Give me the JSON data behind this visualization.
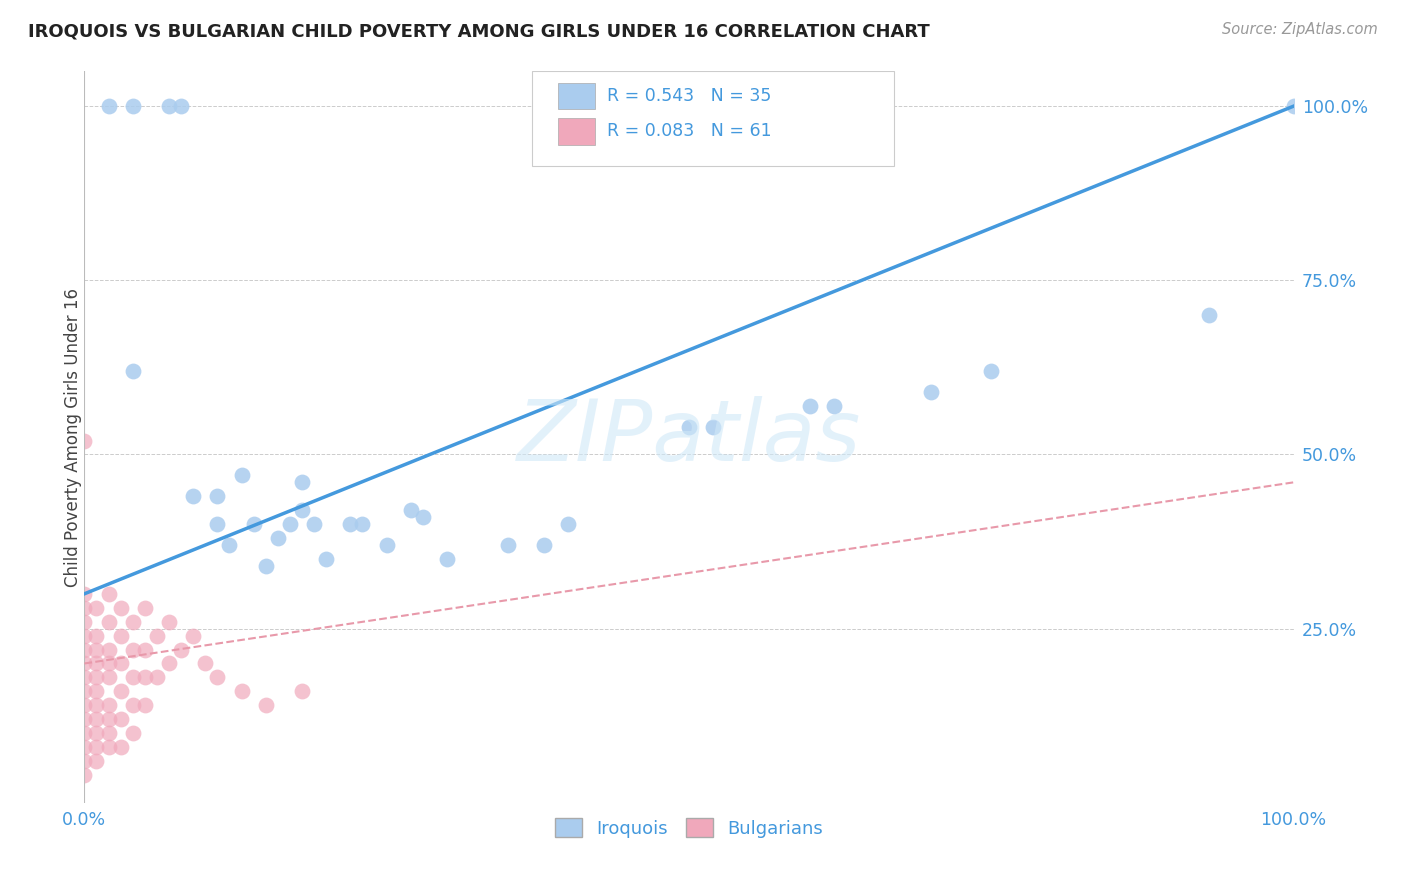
{
  "title": "IROQUOIS VS BULGARIAN CHILD POVERTY AMONG GIRLS UNDER 16 CORRELATION CHART",
  "source": "Source: ZipAtlas.com",
  "ylabel": "Child Poverty Among Girls Under 16",
  "iroquois_R": 0.543,
  "iroquois_N": 35,
  "bulgarians_R": 0.083,
  "bulgarians_N": 61,
  "iroquois_color": "#aaccee",
  "bulgarians_color": "#f0a8bb",
  "iroquois_line_color": "#4499dd",
  "bulgarians_line_color": "#e899aa",
  "legend_label_iroquois": "Iroquois",
  "legend_label_bulgarians": "Bulgarians",
  "iroquois_points": [
    [
      0.02,
      1.0
    ],
    [
      0.04,
      1.0
    ],
    [
      0.07,
      1.0
    ],
    [
      0.08,
      1.0
    ],
    [
      0.04,
      0.62
    ],
    [
      0.09,
      0.44
    ],
    [
      0.11,
      0.44
    ],
    [
      0.11,
      0.4
    ],
    [
      0.12,
      0.37
    ],
    [
      0.13,
      0.47
    ],
    [
      0.14,
      0.4
    ],
    [
      0.15,
      0.34
    ],
    [
      0.16,
      0.38
    ],
    [
      0.17,
      0.4
    ],
    [
      0.18,
      0.46
    ],
    [
      0.18,
      0.42
    ],
    [
      0.19,
      0.4
    ],
    [
      0.2,
      0.35
    ],
    [
      0.22,
      0.4
    ],
    [
      0.23,
      0.4
    ],
    [
      0.25,
      0.37
    ],
    [
      0.27,
      0.42
    ],
    [
      0.28,
      0.41
    ],
    [
      0.3,
      0.35
    ],
    [
      0.35,
      0.37
    ],
    [
      0.38,
      0.37
    ],
    [
      0.4,
      0.4
    ],
    [
      0.5,
      0.54
    ],
    [
      0.52,
      0.54
    ],
    [
      0.6,
      0.57
    ],
    [
      0.62,
      0.57
    ],
    [
      0.7,
      0.59
    ],
    [
      0.75,
      0.62
    ],
    [
      0.93,
      0.7
    ],
    [
      1.0,
      1.0
    ]
  ],
  "bulgarians_points": [
    [
      0.0,
      0.52
    ],
    [
      0.0,
      0.3
    ],
    [
      0.0,
      0.28
    ],
    [
      0.0,
      0.26
    ],
    [
      0.0,
      0.24
    ],
    [
      0.0,
      0.22
    ],
    [
      0.0,
      0.2
    ],
    [
      0.0,
      0.18
    ],
    [
      0.0,
      0.16
    ],
    [
      0.0,
      0.14
    ],
    [
      0.0,
      0.12
    ],
    [
      0.0,
      0.1
    ],
    [
      0.0,
      0.08
    ],
    [
      0.0,
      0.06
    ],
    [
      0.0,
      0.04
    ],
    [
      0.01,
      0.28
    ],
    [
      0.01,
      0.24
    ],
    [
      0.01,
      0.22
    ],
    [
      0.01,
      0.2
    ],
    [
      0.01,
      0.18
    ],
    [
      0.01,
      0.16
    ],
    [
      0.01,
      0.14
    ],
    [
      0.01,
      0.12
    ],
    [
      0.01,
      0.1
    ],
    [
      0.01,
      0.08
    ],
    [
      0.01,
      0.06
    ],
    [
      0.02,
      0.3
    ],
    [
      0.02,
      0.26
    ],
    [
      0.02,
      0.22
    ],
    [
      0.02,
      0.2
    ],
    [
      0.02,
      0.18
    ],
    [
      0.02,
      0.14
    ],
    [
      0.02,
      0.12
    ],
    [
      0.02,
      0.1
    ],
    [
      0.02,
      0.08
    ],
    [
      0.03,
      0.28
    ],
    [
      0.03,
      0.24
    ],
    [
      0.03,
      0.2
    ],
    [
      0.03,
      0.16
    ],
    [
      0.03,
      0.12
    ],
    [
      0.03,
      0.08
    ],
    [
      0.04,
      0.26
    ],
    [
      0.04,
      0.22
    ],
    [
      0.04,
      0.18
    ],
    [
      0.04,
      0.14
    ],
    [
      0.04,
      0.1
    ],
    [
      0.05,
      0.28
    ],
    [
      0.05,
      0.22
    ],
    [
      0.05,
      0.18
    ],
    [
      0.05,
      0.14
    ],
    [
      0.06,
      0.24
    ],
    [
      0.06,
      0.18
    ],
    [
      0.07,
      0.26
    ],
    [
      0.07,
      0.2
    ],
    [
      0.08,
      0.22
    ],
    [
      0.09,
      0.24
    ],
    [
      0.1,
      0.2
    ],
    [
      0.11,
      0.18
    ],
    [
      0.13,
      0.16
    ],
    [
      0.15,
      0.14
    ],
    [
      0.18,
      0.16
    ]
  ],
  "iroquois_line": [
    0.0,
    0.3,
    1.0,
    1.0
  ],
  "bulgarians_line": [
    0.0,
    0.2,
    1.0,
    0.46
  ],
  "watermark_text": "ZIPatlas",
  "background_color": "#ffffff",
  "grid_color": "#cccccc",
  "ytick_vals": [
    0.25,
    0.5,
    0.75,
    1.0
  ],
  "ytick_labels": [
    "25.0%",
    "50.0%",
    "75.0%",
    "100.0%"
  ],
  "xtick_vals": [
    0.0,
    1.0
  ],
  "xtick_labels": [
    "0.0%",
    "100.0%"
  ]
}
